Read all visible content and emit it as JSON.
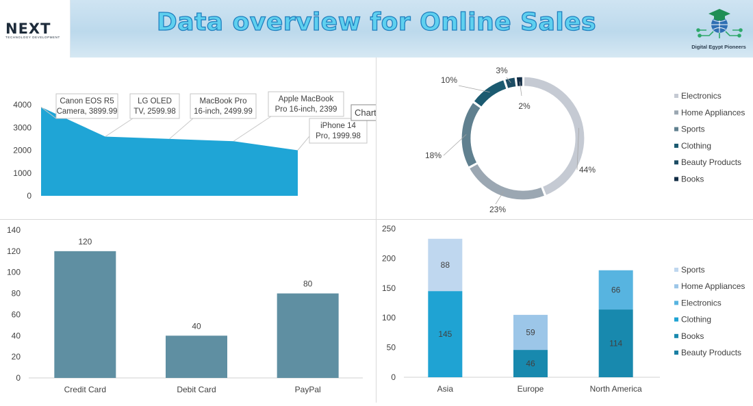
{
  "header": {
    "title": "Data overview for Online Sales",
    "logo_left": {
      "main": "NEXT",
      "sub": "TECHNOLOGY DEVELOPMENT"
    },
    "logo_right": {
      "text": "Digital Egypt Pioneers",
      "icon": "graduation-cap-network-icon"
    }
  },
  "chart_data": [
    {
      "type": "area",
      "categories": [
        "Canon EOS R5 Camera",
        "LG OLED TV",
        "MacBook Pro 16-inch",
        "Apple MacBook Pro 16-inch",
        "iPhone 14 Pro"
      ],
      "values": [
        3899.99,
        2599.98,
        2499.99,
        2399,
        1999.98
      ],
      "data_labels": [
        "Canon EOS R5 Camera, 3899.99",
        "LG OLED TV, 2599.98",
        "MacBook Pro 16-inch, 2499.99",
        "Apple MacBook Pro 16-inch, 2399",
        "iPhone 14 Pro, 1999.98"
      ],
      "yticks": [
        0,
        1000,
        2000,
        3000,
        4000
      ],
      "ylim": [
        0,
        4000
      ],
      "tooltip": "Chart Area",
      "color": "#1fa5d6"
    },
    {
      "type": "pie",
      "donut": true,
      "categories": [
        "Electronics",
        "Home Appliances",
        "Sports",
        "Clothing",
        "Beauty Products",
        "Books"
      ],
      "values": [
        44,
        23,
        18,
        10,
        3,
        2
      ],
      "labels": [
        "44%",
        "23%",
        "18%",
        "10%",
        "3%",
        "2%"
      ],
      "colors": [
        "#c5cad3",
        "#9ba7b2",
        "#60808f",
        "#1b5a70",
        "#1d4d64",
        "#132d45"
      ],
      "legend": "right"
    },
    {
      "type": "bar",
      "categories": [
        "Credit Card",
        "Debit Card",
        "PayPal"
      ],
      "values": [
        120,
        40,
        80
      ],
      "yticks": [
        0,
        20,
        40,
        60,
        80,
        100,
        120,
        140
      ],
      "ylim": [
        0,
        140
      ],
      "color": "#5f8fa2"
    },
    {
      "type": "bar",
      "stacked": true,
      "categories": [
        "Asia",
        "Europe",
        "North America"
      ],
      "series": [
        {
          "name": "Beauty Products",
          "color": "#1a7fa3",
          "values": [
            0,
            0,
            0
          ]
        },
        {
          "name": "Books",
          "color": "#1889ae",
          "values": [
            0,
            46,
            114
          ]
        },
        {
          "name": "Clothing",
          "color": "#1fa3d3",
          "values": [
            145,
            0,
            0
          ]
        },
        {
          "name": "Electronics",
          "color": "#57b4e0",
          "values": [
            0,
            0,
            66
          ]
        },
        {
          "name": "Home Appliances",
          "color": "#9cc6e8",
          "values": [
            0,
            59,
            0
          ]
        },
        {
          "name": "Sports",
          "color": "#bfd7ef",
          "values": [
            88,
            0,
            0
          ]
        }
      ],
      "legend_order": [
        "Sports",
        "Home Appliances",
        "Electronics",
        "Clothing",
        "Books",
        "Beauty Products"
      ],
      "yticks": [
        0,
        50,
        100,
        150,
        200,
        250
      ],
      "ylim": [
        0,
        250
      ],
      "legend": "right"
    }
  ]
}
